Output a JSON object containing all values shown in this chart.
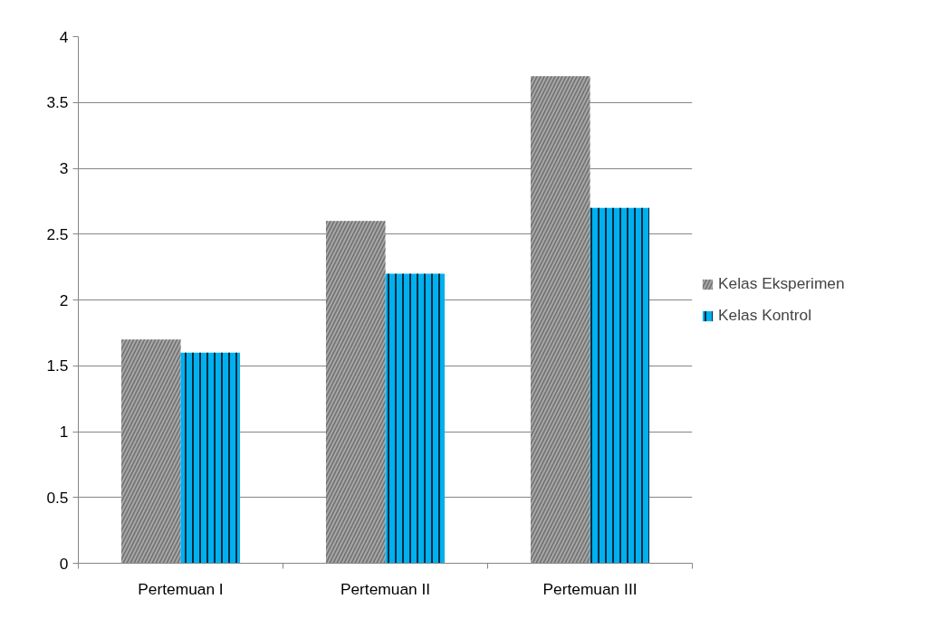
{
  "chart_data": {
    "type": "bar",
    "categories": [
      "Pertemuan I",
      "Pertemuan II",
      "Pertemuan III"
    ],
    "series": [
      {
        "name": "Kelas Eksperimen",
        "color": "#a6a6a6",
        "values": [
          1.7,
          2.6,
          3.7
        ]
      },
      {
        "name": "Kelas Kontrol",
        "color": "#00b0f0",
        "values": [
          1.6,
          2.2,
          2.7
        ]
      }
    ],
    "ylim": [
      0,
      4
    ],
    "yticks": [
      0,
      0.5,
      1,
      1.5,
      2,
      2.5,
      3,
      3.5,
      4
    ],
    "grid": "y",
    "legend": "right"
  }
}
